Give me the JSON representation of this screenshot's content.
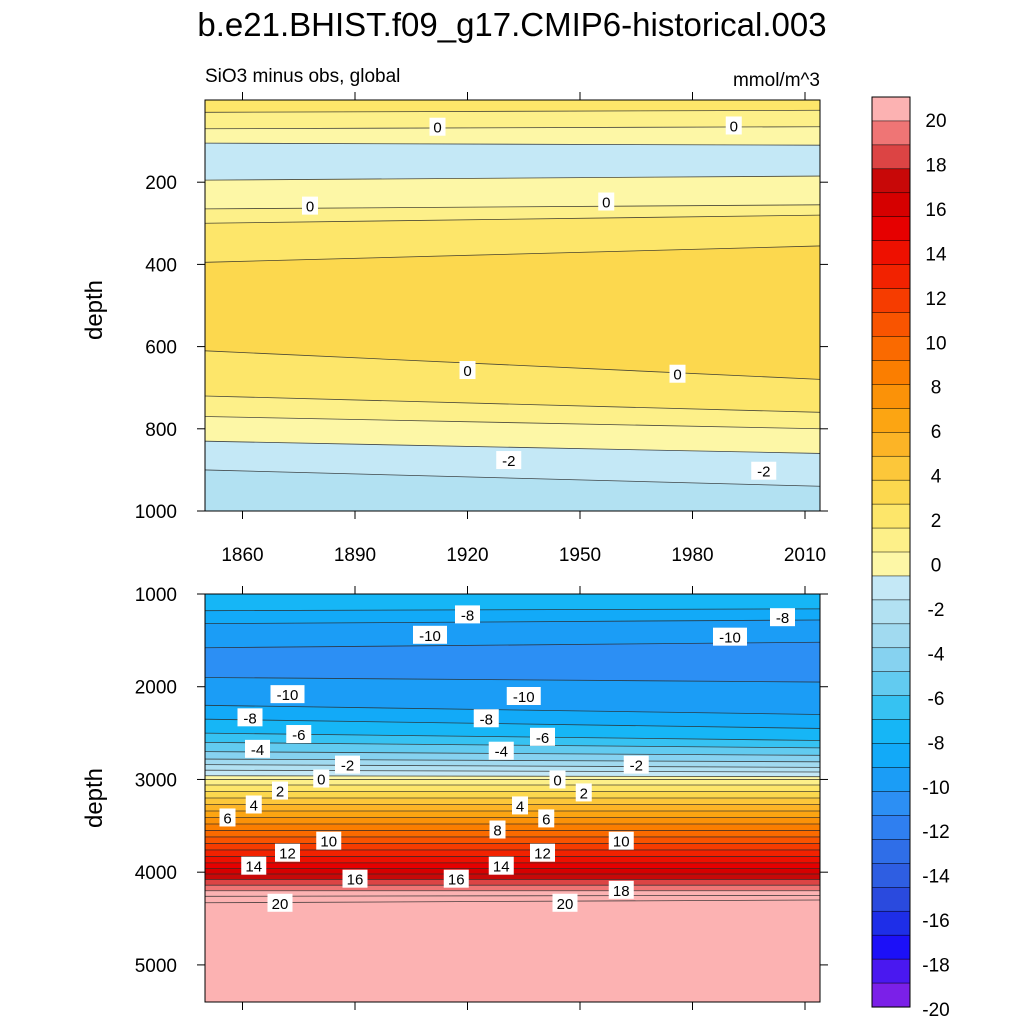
{
  "figure": {
    "title": "b.e21.BHIST.f09_g17.CMIP6-historical.003",
    "subtitle": "SiO3 minus obs, global",
    "units": "mmol/m^3"
  },
  "colorbar": {
    "levels": [
      -21,
      -20,
      -19,
      -18,
      -17,
      -16,
      -15,
      -14,
      -13,
      -12,
      -11,
      -10,
      -9,
      -8,
      -7,
      -6,
      -5,
      -4,
      -3,
      -2,
      -1,
      0,
      1,
      2,
      3,
      4,
      5,
      6,
      7,
      8,
      9,
      10,
      11,
      12,
      13,
      14,
      15,
      16,
      17,
      18,
      19,
      20,
      21
    ],
    "tick_labels": [
      "-20",
      "-18",
      "-16",
      "-14",
      "-12",
      "-10",
      "-8",
      "-6",
      "-4",
      "-2",
      "0",
      "2",
      "4",
      "6",
      "8",
      "10",
      "12",
      "14",
      "16",
      "18",
      "20"
    ],
    "colors": [
      "#7b20e8",
      "#4a18f0",
      "#1c10f8",
      "#1e2ee8",
      "#2a4ade",
      "#2e5ee2",
      "#2f6ee8",
      "#2f7ff0",
      "#2c8ff4",
      "#1b9df6",
      "#12aaf8",
      "#16b6f6",
      "#36c2f2",
      "#62cbf0",
      "#86d2f0",
      "#a1daf0",
      "#b2e1f2",
      "#c4e8f6",
      "#fdf7a6",
      "#fdf089",
      "#fde66a",
      "#fcd84e",
      "#fcc73a",
      "#fcb426",
      "#fca512",
      "#fb9208",
      "#fb7e00",
      "#fa6a00",
      "#f95400",
      "#f63c00",
      "#f22200",
      "#ee1000",
      "#e60000",
      "#d60000",
      "#c80808",
      "#dc4444",
      "#ef7575",
      "#fcb2b2"
    ]
  },
  "chart_data": [
    {
      "type": "heatmap",
      "panel": "upper",
      "xlabel": "",
      "ylabel": "depth",
      "x_ticks": [
        1860,
        1890,
        1920,
        1950,
        1980,
        2010
      ],
      "y_ticks": [
        200,
        400,
        600,
        800,
        1000
      ],
      "xlim": [
        1850,
        2014
      ],
      "ylim": [
        0,
        1000
      ],
      "y_inverted": true,
      "bands": [
        {
          "top": [
            0,
            0
          ],
          "bottom": [
            30,
            25
          ],
          "value": 1.5
        },
        {
          "top": [
            30,
            25
          ],
          "bottom": [
            70,
            65
          ],
          "value": 0.5
        },
        {
          "top": [
            70,
            65
          ],
          "bottom": [
            105,
            110
          ],
          "value": -0.5
        },
        {
          "top": [
            105,
            110
          ],
          "bottom": [
            195,
            185
          ],
          "value": -1.5
        },
        {
          "top": [
            195,
            185
          ],
          "bottom": [
            265,
            255
          ],
          "value": -0.5
        },
        {
          "top": [
            265,
            255
          ],
          "bottom": [
            300,
            280
          ],
          "value": 0.5
        },
        {
          "top": [
            300,
            280
          ],
          "bottom": [
            395,
            355
          ],
          "value": 1.5
        },
        {
          "top": [
            395,
            355
          ],
          "bottom": [
            610,
            680
          ],
          "value": 2.5
        },
        {
          "top": [
            610,
            680
          ],
          "bottom": [
            720,
            760
          ],
          "value": 1.5
        },
        {
          "top": [
            720,
            760
          ],
          "bottom": [
            770,
            800
          ],
          "value": 0.5
        },
        {
          "top": [
            770,
            800
          ],
          "bottom": [
            830,
            860
          ],
          "value": -0.5
        },
        {
          "top": [
            830,
            860
          ],
          "bottom": [
            900,
            940
          ],
          "value": -1.5
        },
        {
          "top": [
            900,
            940
          ],
          "bottom": [
            1000,
            1000
          ],
          "value": -2.5
        }
      ],
      "labels": [
        {
          "text": "0",
          "x": 1912,
          "y": 65
        },
        {
          "text": "0",
          "x": 1991,
          "y": 62
        },
        {
          "text": "0",
          "x": 1878,
          "y": 257
        },
        {
          "text": "0",
          "x": 1957,
          "y": 247
        },
        {
          "text": "0",
          "x": 1920,
          "y": 657
        },
        {
          "text": "0",
          "x": 1976,
          "y": 666
        },
        {
          "text": "-2",
          "x": 1931,
          "y": 876
        },
        {
          "text": "-2",
          "x": 1999,
          "y": 902
        }
      ]
    },
    {
      "type": "heatmap",
      "panel": "lower",
      "xlabel": "",
      "ylabel": "depth",
      "x_ticks": [
        1860,
        1890,
        1920,
        1950,
        1980,
        2010
      ],
      "y_ticks": [
        1000,
        2000,
        3000,
        4000,
        5000
      ],
      "xlim": [
        1850,
        2014
      ],
      "ylim": [
        1000,
        5400
      ],
      "y_inverted": true,
      "bands": [
        {
          "top": [
            1000,
            1000
          ],
          "bottom": [
            1180,
            1160
          ],
          "value": -7.5
        },
        {
          "top": [
            1180,
            1160
          ],
          "bottom": [
            1320,
            1280
          ],
          "value": -8.5
        },
        {
          "top": [
            1320,
            1280
          ],
          "bottom": [
            1580,
            1520
          ],
          "value": -9.5
        },
        {
          "top": [
            1580,
            1520
          ],
          "bottom": [
            1900,
            1950
          ],
          "value": -10.5
        },
        {
          "top": [
            1900,
            1950
          ],
          "bottom": [
            2200,
            2300
          ],
          "value": -9.5
        },
        {
          "top": [
            2200,
            2300
          ],
          "bottom": [
            2350,
            2450
          ],
          "value": -8.5
        },
        {
          "top": [
            2350,
            2450
          ],
          "bottom": [
            2500,
            2580
          ],
          "value": -7.5
        },
        {
          "top": [
            2500,
            2580
          ],
          "bottom": [
            2600,
            2660
          ],
          "value": -6.5
        },
        {
          "top": [
            2600,
            2660
          ],
          "bottom": [
            2700,
            2740
          ],
          "value": -5.5
        },
        {
          "top": [
            2700,
            2740
          ],
          "bottom": [
            2780,
            2810
          ],
          "value": -4.5
        },
        {
          "top": [
            2780,
            2810
          ],
          "bottom": [
            2840,
            2870
          ],
          "value": -3.5
        },
        {
          "top": [
            2840,
            2870
          ],
          "bottom": [
            2900,
            2920
          ],
          "value": -2.5
        },
        {
          "top": [
            2900,
            2920
          ],
          "bottom": [
            2960,
            2970
          ],
          "value": -1.5
        },
        {
          "top": [
            2960,
            2970
          ],
          "bottom": [
            3000,
            3000
          ],
          "value": -0.5
        },
        {
          "top": [
            3000,
            3000
          ],
          "bottom": [
            3060,
            3060
          ],
          "value": 0.5
        },
        {
          "top": [
            3060,
            3060
          ],
          "bottom": [
            3130,
            3130
          ],
          "value": 1.5
        },
        {
          "top": [
            3130,
            3130
          ],
          "bottom": [
            3200,
            3200
          ],
          "value": 2.5
        },
        {
          "top": [
            3200,
            3200
          ],
          "bottom": [
            3270,
            3270
          ],
          "value": 3.5
        },
        {
          "top": [
            3270,
            3270
          ],
          "bottom": [
            3340,
            3340
          ],
          "value": 4.5
        },
        {
          "top": [
            3340,
            3340
          ],
          "bottom": [
            3410,
            3410
          ],
          "value": 5.5
        },
        {
          "top": [
            3410,
            3410
          ],
          "bottom": [
            3480,
            3480
          ],
          "value": 6.5
        },
        {
          "top": [
            3480,
            3480
          ],
          "bottom": [
            3550,
            3550
          ],
          "value": 7.5
        },
        {
          "top": [
            3550,
            3550
          ],
          "bottom": [
            3620,
            3620
          ],
          "value": 8.5
        },
        {
          "top": [
            3620,
            3620
          ],
          "bottom": [
            3690,
            3690
          ],
          "value": 9.5
        },
        {
          "top": [
            3690,
            3690
          ],
          "bottom": [
            3760,
            3760
          ],
          "value": 10.5
        },
        {
          "top": [
            3760,
            3760
          ],
          "bottom": [
            3830,
            3830
          ],
          "value": 11.5
        },
        {
          "top": [
            3830,
            3830
          ],
          "bottom": [
            3900,
            3900
          ],
          "value": 12.5
        },
        {
          "top": [
            3900,
            3900
          ],
          "bottom": [
            3960,
            3960
          ],
          "value": 13.5
        },
        {
          "top": [
            3960,
            3960
          ],
          "bottom": [
            4020,
            4020
          ],
          "value": 14.5
        },
        {
          "top": [
            4020,
            4020
          ],
          "bottom": [
            4080,
            4080
          ],
          "value": 15.5
        },
        {
          "top": [
            4080,
            4080
          ],
          "bottom": [
            4140,
            4140
          ],
          "value": 16.5
        },
        {
          "top": [
            4140,
            4140
          ],
          "bottom": [
            4200,
            4200
          ],
          "value": 17.5
        },
        {
          "top": [
            4200,
            4200
          ],
          "bottom": [
            4260,
            4250
          ],
          "value": 18.5
        },
        {
          "top": [
            4260,
            4250
          ],
          "bottom": [
            4330,
            4300
          ],
          "value": 19.5
        },
        {
          "top": [
            4330,
            4300
          ],
          "bottom": [
            5400,
            5400
          ],
          "value": 20.5
        }
      ],
      "labels": [
        {
          "text": "-8",
          "x": 1920,
          "y": 1220
        },
        {
          "text": "-8",
          "x": 2004,
          "y": 1250
        },
        {
          "text": "-10",
          "x": 1910,
          "y": 1440
        },
        {
          "text": "-10",
          "x": 1990,
          "y": 1460
        },
        {
          "text": "-10",
          "x": 1872,
          "y": 2080
        },
        {
          "text": "-10",
          "x": 1935,
          "y": 2100
        },
        {
          "text": "-8",
          "x": 1862,
          "y": 2330
        },
        {
          "text": "-8",
          "x": 1925,
          "y": 2340
        },
        {
          "text": "-6",
          "x": 1875,
          "y": 2510
        },
        {
          "text": "-6",
          "x": 1940,
          "y": 2540
        },
        {
          "text": "-4",
          "x": 1864,
          "y": 2670
        },
        {
          "text": "-4",
          "x": 1929,
          "y": 2690
        },
        {
          "text": "-2",
          "x": 1888,
          "y": 2840
        },
        {
          "text": "-2",
          "x": 1965,
          "y": 2840
        },
        {
          "text": "0",
          "x": 1881,
          "y": 2990
        },
        {
          "text": "0",
          "x": 1944,
          "y": 3000
        },
        {
          "text": "2",
          "x": 1870,
          "y": 3120
        },
        {
          "text": "2",
          "x": 1951,
          "y": 3140
        },
        {
          "text": "4",
          "x": 1863,
          "y": 3270
        },
        {
          "text": "4",
          "x": 1934,
          "y": 3280
        },
        {
          "text": "6",
          "x": 1856,
          "y": 3410
        },
        {
          "text": "6",
          "x": 1941,
          "y": 3420
        },
        {
          "text": "8",
          "x": 1928,
          "y": 3540
        },
        {
          "text": "10",
          "x": 1883,
          "y": 3660
        },
        {
          "text": "10",
          "x": 1961,
          "y": 3660
        },
        {
          "text": "12",
          "x": 1872,
          "y": 3790
        },
        {
          "text": "12",
          "x": 1940,
          "y": 3790
        },
        {
          "text": "14",
          "x": 1863,
          "y": 3930
        },
        {
          "text": "14",
          "x": 1929,
          "y": 3930
        },
        {
          "text": "16",
          "x": 1890,
          "y": 4070
        },
        {
          "text": "16",
          "x": 1917,
          "y": 4070
        },
        {
          "text": "18",
          "x": 1961,
          "y": 4190
        },
        {
          "text": "20",
          "x": 1870,
          "y": 4330
        },
        {
          "text": "20",
          "x": 1946,
          "y": 4330
        }
      ]
    }
  ]
}
